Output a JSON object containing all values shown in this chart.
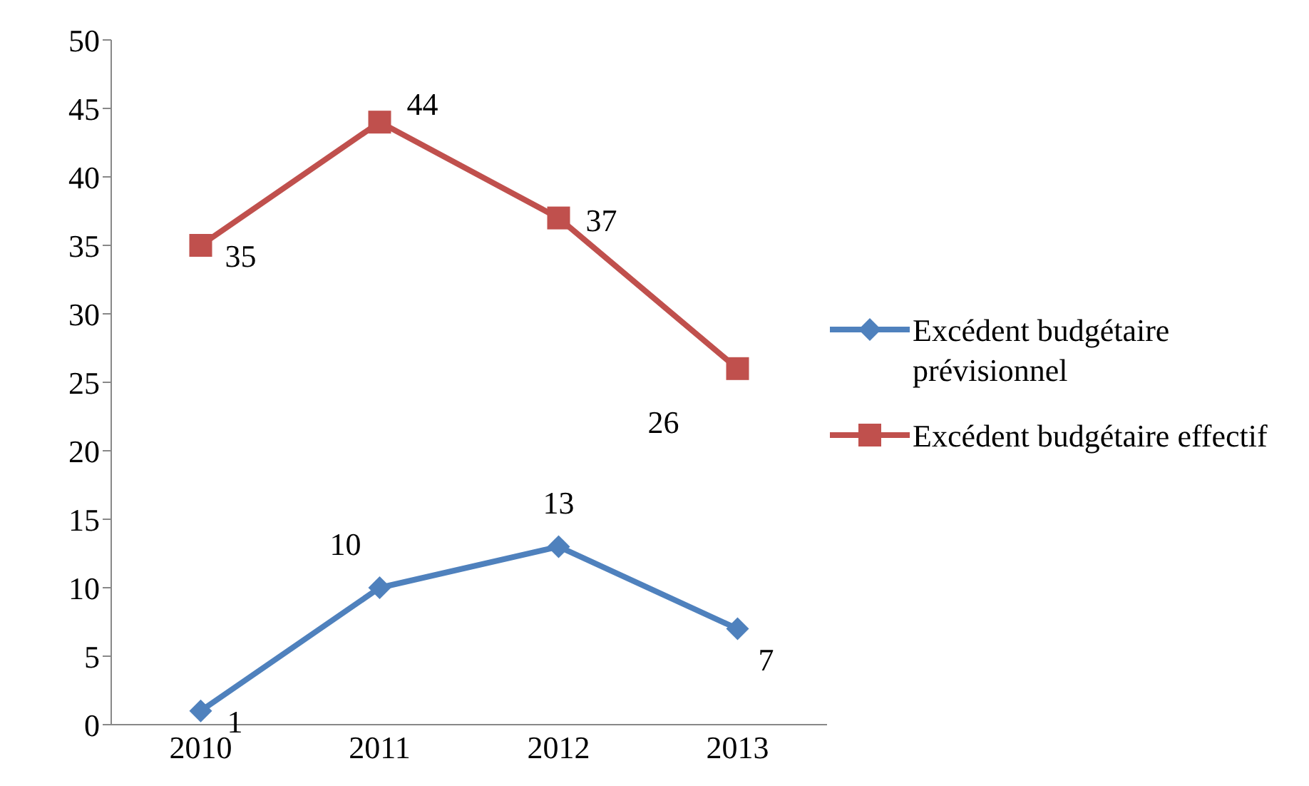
{
  "chart_data": {
    "type": "line",
    "categories": [
      "2010",
      "2011",
      "2012",
      "2013"
    ],
    "series": [
      {
        "name": "Excédent budgétaire prévisionnel",
        "color": "#4f81bd",
        "marker": "diamond",
        "values": [
          1,
          10,
          13,
          7
        ]
      },
      {
        "name": "Excédent budgétaire effectif",
        "color": "#c0504d",
        "marker": "square",
        "values": [
          35,
          44,
          37,
          26
        ]
      }
    ],
    "ylim": [
      0,
      50
    ],
    "yticks": [
      0,
      5,
      10,
      15,
      20,
      25,
      30,
      35,
      40,
      45,
      50
    ],
    "legend": "right",
    "data_labels": true
  }
}
